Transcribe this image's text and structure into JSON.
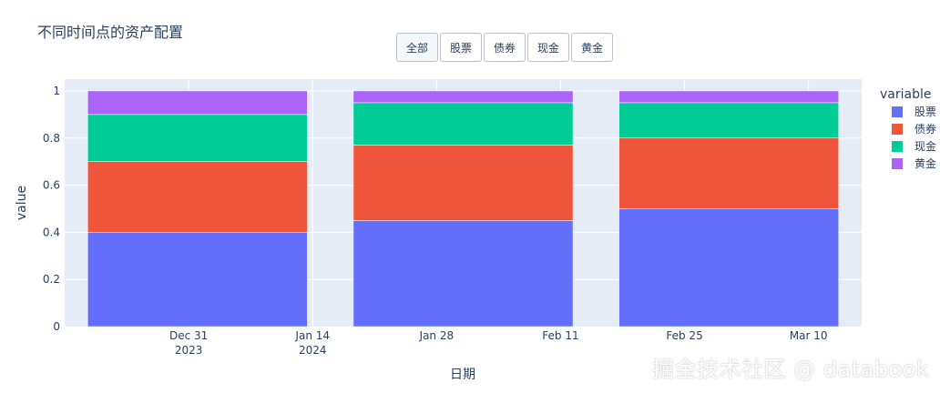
{
  "chart_title": "不同时间点的资产配置",
  "buttons": [
    {
      "label": "全部"
    },
    {
      "label": "股票"
    },
    {
      "label": "债券"
    },
    {
      "label": "现金"
    },
    {
      "label": "黄金"
    }
  ],
  "watermark": "掘金技术社区 @ databook",
  "chart_data": {
    "type": "bar",
    "stacked": true,
    "title": "不同时间点的资产配置",
    "xlabel": "日期",
    "ylabel": "value",
    "legend_title": "variable",
    "legend_position": "right",
    "grid": true,
    "x": [
      "2024-01-01",
      "2024-01-31",
      "2024-03-01"
    ],
    "xlim": [
      "2023-12-17",
      "2024-03-16"
    ],
    "ylim": [
      0,
      1.05
    ],
    "yticks": [
      0,
      0.2,
      0.4,
      0.6,
      0.8,
      1
    ],
    "ytick_labels": [
      "0",
      "0.2",
      "0.4",
      "0.6",
      "0.8",
      "1"
    ],
    "xticks": [
      {
        "date": "2023-12-31",
        "label": "Dec 31",
        "sub": "2023"
      },
      {
        "date": "2024-01-14",
        "label": "Jan 14",
        "sub": "2024"
      },
      {
        "date": "2024-01-28",
        "label": "Jan 28",
        "sub": ""
      },
      {
        "date": "2024-02-11",
        "label": "Feb 11",
        "sub": ""
      },
      {
        "date": "2024-02-25",
        "label": "Feb 25",
        "sub": ""
      },
      {
        "date": "2024-03-10",
        "label": "Mar 10",
        "sub": ""
      }
    ],
    "series": [
      {
        "name": "股票",
        "color": "#636efa",
        "values": [
          0.4,
          0.45,
          0.5
        ]
      },
      {
        "name": "债券",
        "color": "#ef553b",
        "values": [
          0.3,
          0.32,
          0.3
        ]
      },
      {
        "name": "现金",
        "color": "#00cc96",
        "values": [
          0.2,
          0.18,
          0.15
        ]
      },
      {
        "name": "黄金",
        "color": "#ab63fa",
        "values": [
          0.1,
          0.05,
          0.05
        ]
      }
    ]
  }
}
